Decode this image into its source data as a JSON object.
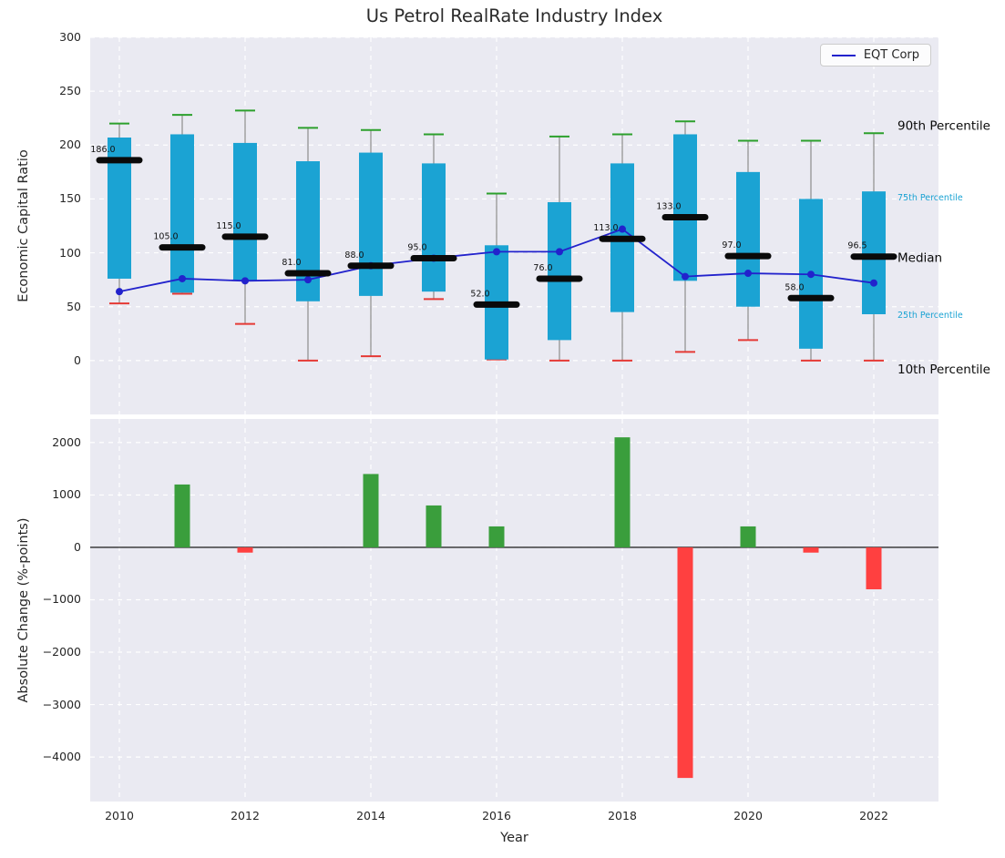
{
  "title": "Us Petrol RealRate Industry Index",
  "xlabel": "Year",
  "legend": {
    "label": "EQT Corp"
  },
  "top_panel": {
    "ylabel": "Economic Capital Ratio",
    "ytick_values": [
      0,
      50,
      100,
      150,
      200,
      250,
      300
    ],
    "ytick_labels": [
      "0",
      "50",
      "100",
      "150",
      "200",
      "250",
      "300"
    ],
    "ylim": [
      -50,
      300
    ],
    "annotations": [
      {
        "label": "90th Percentile",
        "series": "90th Percentile",
        "style": "big"
      },
      {
        "label": "75th Percentile",
        "series": "75th Percentile",
        "style": "small"
      },
      {
        "label": "Median",
        "series": "Median",
        "style": "big"
      },
      {
        "label": "25th Percentile",
        "series": "25th Percentile",
        "style": "small"
      },
      {
        "label": "10th Percentile",
        "series": "10th Percentile",
        "style": "big"
      }
    ]
  },
  "bottom_panel": {
    "ylabel": "Absolute Change (%-points)",
    "ytick_values": [
      2000,
      1000,
      0,
      -1000,
      -2000,
      -3000,
      -4000
    ],
    "ytick_labels": [
      "2000",
      "1000",
      "0",
      "−1000",
      "−2000",
      "−3000",
      "−4000"
    ],
    "ylim": [
      -4850,
      2450
    ]
  },
  "x_axis": {
    "tick_years": [
      2010,
      2012,
      2014,
      2016,
      2018,
      2020,
      2022
    ],
    "tick_labels": [
      "2010",
      "2012",
      "2014",
      "2016",
      "2018",
      "2020",
      "2022"
    ]
  },
  "colors": {
    "box": "#1ba3d3",
    "whisker": "#9b9b9b",
    "cap_top": "#2ca02c",
    "cap_bottom": "#e53935",
    "median": "#0a0a0a",
    "eqt": "#2222cc",
    "bar_pos": "#3a9e3c",
    "bar_neg": "#ff4040",
    "panel_bg": "#eaeaf2",
    "grid": "#ffffff",
    "annotation_big": "#0a0a0a",
    "annotation_small": "#1ba3d3",
    "zero_line": "#000000"
  },
  "chart_data": [
    {
      "type": "boxplot",
      "title": "Us Petrol RealRate Industry Index",
      "xlabel": "Year",
      "ylabel": "Economic Capital Ratio",
      "ylim": [
        -50,
        300
      ],
      "grid": true,
      "legend_position": "upper right",
      "x": [
        2010,
        2011,
        2012,
        2013,
        2014,
        2015,
        2016,
        2017,
        2018,
        2019,
        2020,
        2021,
        2022
      ],
      "series": [
        {
          "name": "90th Percentile",
          "values": [
            220,
            228,
            232,
            216,
            214,
            210,
            155,
            208,
            210,
            222,
            204,
            204,
            211
          ]
        },
        {
          "name": "75th Percentile",
          "values": [
            207,
            210,
            202,
            185,
            193,
            183,
            107,
            147,
            183,
            210,
            175,
            150,
            157
          ]
        },
        {
          "name": "Median",
          "values": [
            186,
            105,
            115,
            81,
            88,
            95,
            52,
            76,
            113,
            133,
            97,
            58,
            96.5
          ]
        },
        {
          "name": "25th Percentile",
          "values": [
            76,
            63,
            74,
            55,
            60,
            64,
            1,
            19,
            45,
            74,
            50,
            11,
            43
          ]
        },
        {
          "name": "10th Percentile",
          "values": [
            53,
            62,
            34,
            0,
            4,
            57,
            1,
            0,
            0,
            8,
            19,
            0,
            0
          ]
        },
        {
          "name": "EQT Corp",
          "values": [
            64,
            76,
            74,
            75,
            88,
            95,
            101,
            101,
            122,
            78,
            81,
            80,
            72
          ]
        }
      ],
      "median_labels": [
        "186.0",
        "105.0",
        "115.0",
        "81.0",
        "88.0",
        "95.0",
        "52.0",
        "76.0",
        "113.0",
        "133.0",
        "97.0",
        "58.0",
        "96.5"
      ]
    },
    {
      "type": "bar",
      "ylabel": "Absolute Change (%-points)",
      "ylim": [
        -4850,
        2450
      ],
      "x": [
        2010,
        2011,
        2012,
        2013,
        2014,
        2015,
        2016,
        2017,
        2018,
        2019,
        2020,
        2021,
        2022
      ],
      "values": [
        0,
        1200,
        -100,
        0,
        1400,
        800,
        400,
        0,
        2100,
        -4400,
        400,
        -100,
        -800
      ]
    }
  ]
}
